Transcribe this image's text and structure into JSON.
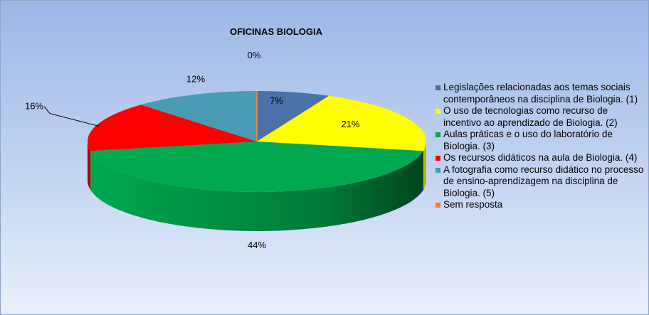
{
  "chart_data": {
    "type": "pie",
    "title": "OFICINAS BIOLOGIA",
    "categories": [
      "Legislações relacionadas aos temas sociais contemporâneos na disciplina de Biologia. (1)",
      "O uso de tecnologias como recurso de incentivo ao aprendizado de Biologia. (2)",
      "Aulas práticas e o uso do laboratório de Biologia. (3)",
      "Os recursos didáticos na aula de Biologia. (4)",
      "A fotografia como recurso didático no processo de ensino-aprendizagem na disciplina de Biologia. (5)",
      "Sem resposta"
    ],
    "values": [
      7,
      21,
      44,
      16,
      12,
      0
    ],
    "data_labels": [
      "7%",
      "21%",
      "44%",
      "16%",
      "12%",
      "0%"
    ],
    "colors": [
      "#4a71a8",
      "#ffff00",
      "#00a84f",
      "#ff0000",
      "#4a9cb4",
      "#e8823a"
    ],
    "legend_position": "right",
    "style": "3d-exploded-pie"
  }
}
